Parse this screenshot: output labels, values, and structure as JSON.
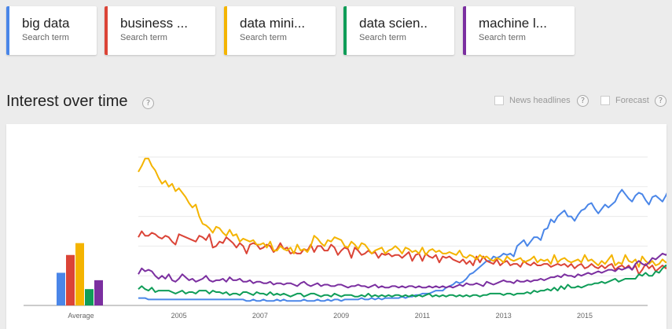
{
  "search_terms": [
    {
      "label": "big data",
      "sublabel": "Search term",
      "color": "#4a86e8"
    },
    {
      "label": "business ...",
      "sublabel": "Search term",
      "color": "#db4437"
    },
    {
      "label": "data mini...",
      "sublabel": "Search term",
      "color": "#f4b400"
    },
    {
      "label": "data scien..",
      "sublabel": "Search term",
      "color": "#0f9d58"
    },
    {
      "label": "machine l...",
      "sublabel": "Search term",
      "color": "#7b2fa0"
    }
  ],
  "section": {
    "title": "Interest over time",
    "help": "?"
  },
  "options": [
    {
      "label": "News headlines",
      "help": "?",
      "checked": false
    },
    {
      "label": "Forecast",
      "help": "?",
      "checked": false
    }
  ],
  "chart_data": {
    "type": "line",
    "x_start": 2004.0,
    "x_step": 0.0833333,
    "xlim": [
      2004.0,
      2016.55
    ],
    "ylim": [
      0,
      100
    ],
    "x_ticks": [
      2005,
      2007,
      2009,
      2011,
      2013,
      2015
    ],
    "x_tick_labels": [
      "2005",
      "2007",
      "2009",
      "2011",
      "2013",
      "2015"
    ],
    "grid": true,
    "series": [
      {
        "name": "big data",
        "color": "#4a86e8",
        "values": [
          5,
          5,
          5,
          4,
          4,
          4,
          4,
          4,
          4,
          4,
          4,
          4,
          4,
          4,
          4,
          4,
          4,
          4,
          4,
          4,
          4,
          4,
          4,
          4,
          4,
          4,
          4,
          4,
          4,
          4,
          4,
          4,
          3,
          3,
          4,
          3,
          3,
          4,
          3,
          3,
          3,
          4,
          3,
          4,
          3,
          3,
          3,
          3,
          3,
          4,
          3,
          3,
          3,
          4,
          3,
          3,
          4,
          3,
          4,
          4,
          3,
          4,
          4,
          4,
          4,
          4,
          5,
          4,
          4,
          5,
          4,
          5,
          4,
          5,
          5,
          5,
          5,
          5,
          6,
          5,
          6,
          6,
          7,
          7,
          8,
          8,
          8,
          9,
          10,
          10,
          10,
          12,
          13,
          14,
          16,
          15,
          16,
          18,
          21,
          22,
          24,
          26,
          28,
          30,
          30,
          33,
          32,
          33,
          35,
          34,
          35,
          33,
          40,
          42,
          44,
          40,
          43,
          46,
          46,
          44,
          51,
          52,
          58,
          56,
          60,
          62,
          64,
          60,
          60,
          57,
          61,
          64,
          65,
          68,
          69,
          65,
          62,
          65,
          68,
          66,
          68,
          70,
          75,
          78,
          75,
          72,
          70,
          74,
          76,
          75,
          71,
          68,
          73,
          74,
          72,
          70,
          74,
          79,
          82,
          83
        ]
      },
      {
        "name": "business ...",
        "color": "#db4437",
        "values": [
          46,
          50,
          47,
          47,
          49,
          48,
          46,
          45,
          47,
          46,
          43,
          41,
          48,
          47,
          46,
          45,
          44,
          43,
          47,
          46,
          44,
          48,
          39,
          40,
          43,
          42,
          46,
          44,
          42,
          39,
          42,
          40,
          35,
          41,
          42,
          41,
          38,
          39,
          41,
          40,
          36,
          38,
          42,
          38,
          39,
          35,
          36,
          35,
          35,
          38,
          37,
          41,
          36,
          40,
          40,
          37,
          37,
          41,
          39,
          34,
          37,
          39,
          38,
          32,
          39,
          37,
          34,
          35,
          37,
          35,
          36,
          32,
          35,
          34,
          35,
          33,
          34,
          34,
          32,
          34,
          36,
          30,
          34,
          35,
          30,
          35,
          33,
          32,
          34,
          29,
          33,
          32,
          33,
          31,
          30,
          29,
          31,
          28,
          30,
          27,
          33,
          29,
          33,
          30,
          29,
          28,
          31,
          27,
          29,
          30,
          27,
          28,
          28,
          26,
          30,
          28,
          27,
          29,
          27,
          27,
          28,
          28,
          26,
          27,
          28,
          27,
          28,
          26,
          28,
          25,
          27,
          28,
          25,
          26,
          28,
          26,
          25,
          27,
          25,
          27,
          28,
          24,
          26,
          27,
          25,
          27,
          24,
          27,
          21,
          24,
          28,
          25,
          27,
          23,
          25,
          27,
          25,
          27,
          28
        ]
      },
      {
        "name": "data mini...",
        "color": "#f4b400",
        "values": [
          90,
          94,
          99,
          99,
          94,
          91,
          86,
          82,
          84,
          80,
          82,
          77,
          79,
          76,
          73,
          69,
          66,
          68,
          60,
          55,
          54,
          52,
          49,
          53,
          52,
          49,
          47,
          51,
          47,
          48,
          43,
          45,
          44,
          43,
          44,
          41,
          41,
          42,
          39,
          43,
          37,
          37,
          40,
          38,
          37,
          39,
          35,
          41,
          37,
          38,
          36,
          40,
          47,
          45,
          42,
          40,
          44,
          43,
          46,
          45,
          44,
          40,
          39,
          43,
          41,
          38,
          42,
          41,
          38,
          35,
          37,
          38,
          39,
          35,
          37,
          38,
          40,
          38,
          35,
          39,
          38,
          36,
          37,
          35,
          39,
          34,
          37,
          38,
          36,
          37,
          35,
          35,
          36,
          35,
          34,
          37,
          33,
          32,
          34,
          33,
          31,
          34,
          32,
          33,
          31,
          30,
          32,
          31,
          29,
          33,
          31,
          30,
          31,
          32,
          29,
          30,
          31,
          33,
          29,
          31,
          30,
          31,
          28,
          34,
          29,
          31,
          32,
          30,
          29,
          30,
          31,
          29,
          34,
          30,
          31,
          29,
          27,
          30,
          28,
          31,
          34,
          27,
          29,
          28,
          34,
          30,
          29,
          31,
          26,
          33,
          30,
          28,
          30,
          27,
          28,
          31,
          29,
          30,
          31
        ]
      },
      {
        "name": "data scien..",
        "color": "#0f9d58",
        "values": [
          11,
          13,
          11,
          10,
          12,
          9,
          10,
          10,
          10,
          10,
          9,
          8,
          9,
          10,
          8,
          9,
          9,
          8,
          10,
          10,
          10,
          8,
          10,
          9,
          9,
          8,
          9,
          7,
          8,
          8,
          7,
          9,
          9,
          8,
          7,
          9,
          8,
          8,
          7,
          9,
          7,
          8,
          7,
          8,
          7,
          6,
          7,
          8,
          8,
          6,
          7,
          8,
          8,
          7,
          6,
          7,
          7,
          6,
          8,
          7,
          6,
          7,
          7,
          7,
          6,
          6,
          7,
          6,
          8,
          6,
          7,
          6,
          7,
          6,
          7,
          6,
          7,
          7,
          6,
          7,
          6,
          7,
          6,
          7,
          6,
          7,
          8,
          6,
          7,
          6,
          7,
          6,
          7,
          7,
          6,
          7,
          6,
          7,
          6,
          7,
          7,
          6,
          7,
          7,
          8,
          8,
          8,
          8,
          7,
          8,
          8,
          7,
          8,
          8,
          8,
          9,
          8,
          10,
          9,
          10,
          10,
          11,
          10,
          12,
          10,
          13,
          11,
          14,
          12,
          12,
          13,
          12,
          13,
          14,
          14,
          15,
          15,
          16,
          15,
          16,
          17,
          18,
          16,
          17,
          18,
          18,
          18,
          18,
          21,
          20,
          22,
          20,
          20,
          23,
          22,
          25,
          27,
          25,
          28
        ]
      },
      {
        "name": "machine l...",
        "color": "#7b2fa0",
        "values": [
          21,
          25,
          23,
          24,
          23,
          20,
          18,
          20,
          18,
          21,
          17,
          16,
          18,
          21,
          19,
          17,
          18,
          16,
          17,
          18,
          20,
          17,
          16,
          17,
          17,
          18,
          16,
          19,
          17,
          17,
          18,
          16,
          16,
          17,
          15,
          16,
          16,
          15,
          15,
          16,
          14,
          15,
          15,
          14,
          15,
          15,
          14,
          13,
          15,
          16,
          14,
          13,
          14,
          15,
          13,
          14,
          14,
          13,
          13,
          14,
          14,
          13,
          12,
          13,
          13,
          14,
          13,
          13,
          12,
          13,
          14,
          12,
          13,
          12,
          12,
          13,
          13,
          12,
          13,
          12,
          13,
          13,
          12,
          13,
          12,
          12,
          13,
          12,
          13,
          12,
          13,
          12,
          13,
          12,
          13,
          14,
          13,
          15,
          14,
          14,
          15,
          14,
          13,
          16,
          15,
          14,
          15,
          16,
          17,
          16,
          16,
          15,
          17,
          16,
          16,
          17,
          16,
          17,
          17,
          18,
          17,
          18,
          19,
          19,
          20,
          19,
          21,
          20,
          20,
          19,
          21,
          20,
          21,
          22,
          21,
          22,
          23,
          22,
          23,
          24,
          24,
          23,
          25,
          24,
          25,
          26,
          24,
          28,
          30,
          28,
          27,
          29,
          32,
          31,
          33,
          35,
          34,
          36,
          41
        ]
      }
    ],
    "average_bars": {
      "label": "Average",
      "values": [
        22,
        34,
        42,
        11,
        17
      ]
    }
  }
}
